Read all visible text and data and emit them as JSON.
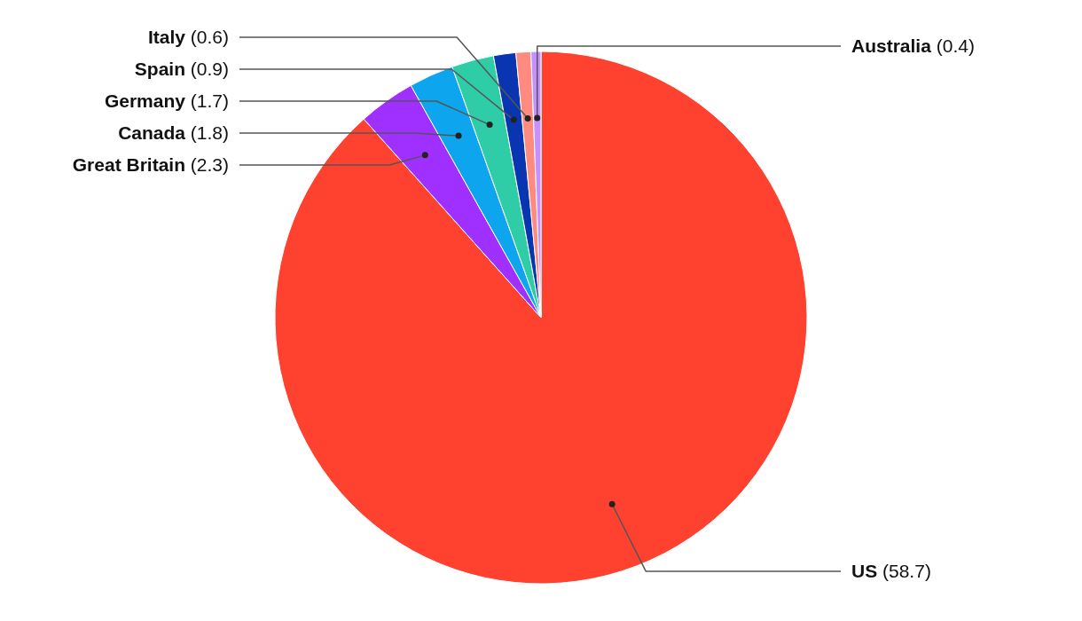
{
  "chart_data": {
    "type": "pie",
    "categories": [
      "US",
      "Great Britain",
      "Canada",
      "Germany",
      "Spain",
      "Italy",
      "Australia"
    ],
    "values": [
      58.7,
      2.3,
      1.8,
      1.7,
      0.9,
      0.6,
      0.4
    ],
    "colors": [
      "#ff4130",
      "#a030ff",
      "#0ea5ef",
      "#2ecda8",
      "#0a35b0",
      "#ff8a80",
      "#c690ff"
    ],
    "value_labels": [
      "(58.7)",
      "(2.3)",
      "(1.8)",
      "(1.7)",
      "(0.9)",
      "(0.6)",
      "(0.4)"
    ]
  }
}
